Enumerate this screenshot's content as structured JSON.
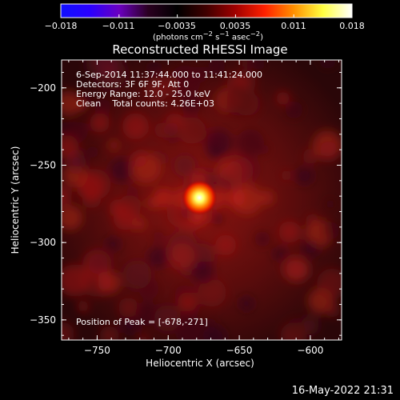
{
  "colorbar": {
    "ticks": [
      "−0.018",
      "−0.011",
      "−0.0035",
      "0.0035",
      "0.011",
      "0.018"
    ],
    "units_html": "(photons cm<sup>−2</sup> s<sup>−1</sup> asec<sup>−2</sup>)",
    "colors": [
      "#1010ff",
      "#2a00ff",
      "#6a00c0",
      "#2a0020",
      "#000000",
      "#400000",
      "#a00000",
      "#ff2000",
      "#ff9000",
      "#ffff40",
      "#ffffff"
    ]
  },
  "title": "Reconstructed RHESSI Image",
  "info": {
    "time_range": "6-Sep-2014 11:37:44.000 to 11:41:24.000",
    "detectors": "Detectors: 3F 6F 9F, Att 0",
    "energy": "Energy Range: 12.0 - 25.0 keV",
    "method": "Clean    Total counts: 4.26E+03",
    "peak": "Position of Peak = [-678,-271]"
  },
  "footer": {
    "date": "16-May-2022 21:31"
  },
  "chart_data": {
    "type": "heatmap",
    "title": "Reconstructed RHESSI Image",
    "xlabel": "Heliocentric X (arcsec)",
    "ylabel": "Heliocentric Y (arcsec)",
    "xlim": [
      -775,
      -578
    ],
    "ylim": [
      -363,
      -182
    ],
    "x_ticks": [
      -750,
      -700,
      -650,
      -600
    ],
    "x_tick_labels": [
      "−750",
      "−700",
      "−650",
      "−600"
    ],
    "y_ticks": [
      -200,
      -250,
      -300,
      -350
    ],
    "y_tick_labels": [
      "−200",
      "−250",
      "−300",
      "−350"
    ],
    "peak": {
      "x": -678,
      "y": -271
    },
    "colorbar_range": [
      -0.018,
      0.018
    ]
  }
}
